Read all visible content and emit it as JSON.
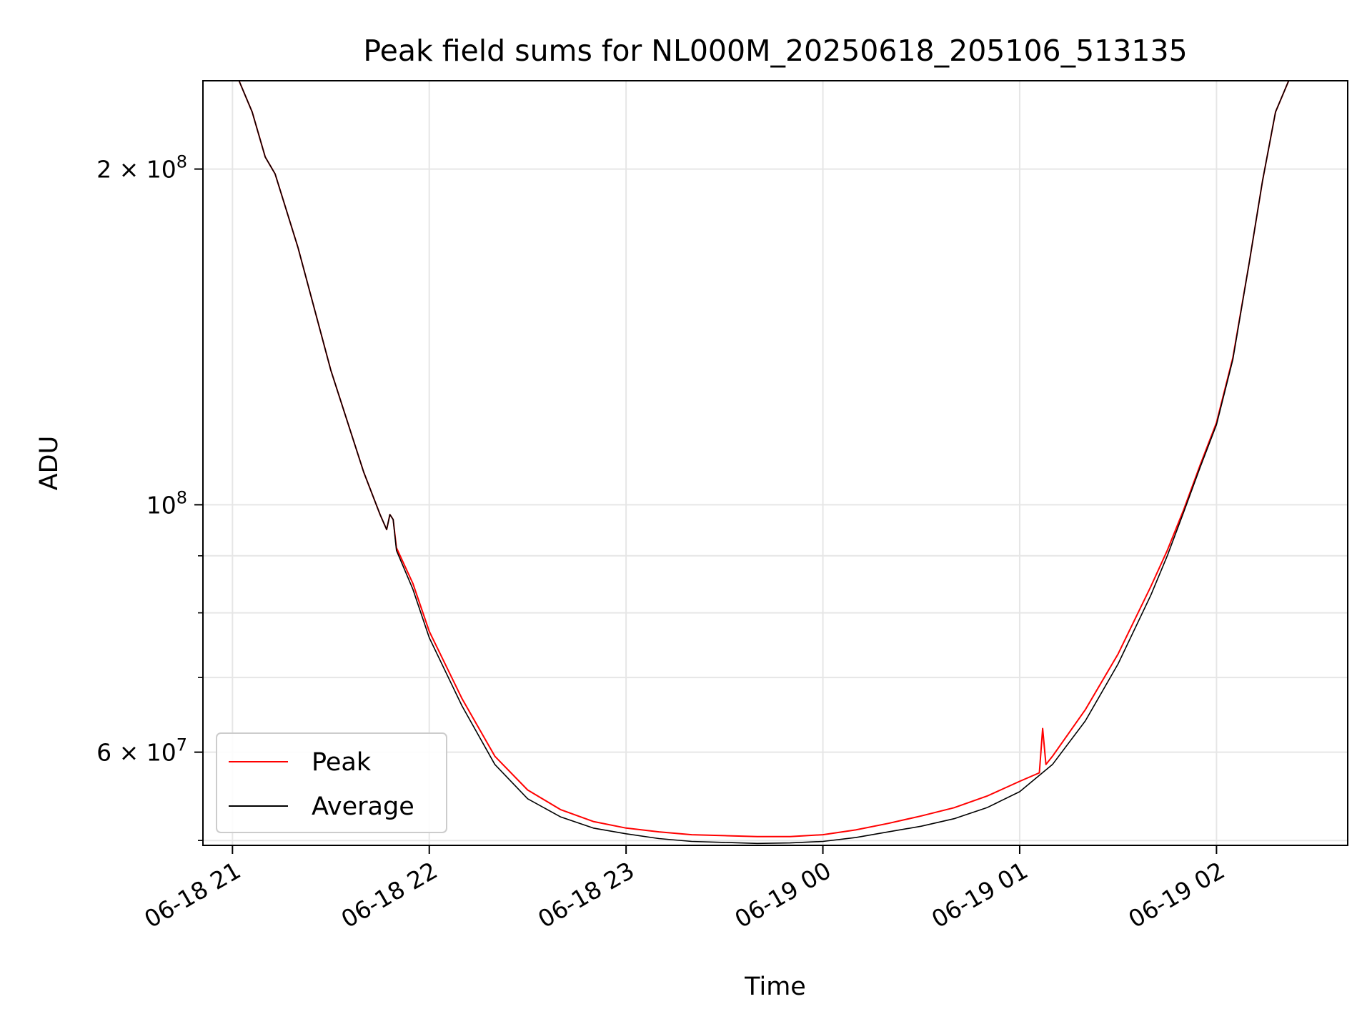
{
  "chart_data": {
    "type": "line",
    "title": "Peak field sums for NL000M_20250618_205106_513135",
    "xlabel": "Time",
    "ylabel": "ADU",
    "yscale": "log",
    "grid": true,
    "legend_position": "lower-left",
    "xlim": [
      "2025-06-18 20:51",
      "2025-06-19 02:40"
    ],
    "ylim": [
      49500000,
      240000000
    ],
    "x_ticks": [
      {
        "value": "2025-06-18 21:00",
        "label": "06-18 21"
      },
      {
        "value": "2025-06-18 22:00",
        "label": "06-18 22"
      },
      {
        "value": "2025-06-18 23:00",
        "label": "06-18 23"
      },
      {
        "value": "2025-06-19 00:00",
        "label": "06-19 00"
      },
      {
        "value": "2025-06-19 01:00",
        "label": "06-19 01"
      },
      {
        "value": "2025-06-19 02:00",
        "label": "06-19 02"
      }
    ],
    "y_ticks_major": [
      {
        "value": 200000000,
        "label": "2 × 10",
        "exp": "8"
      },
      {
        "value": 100000000,
        "label": "10",
        "exp": "8"
      },
      {
        "value": 60000000,
        "label": "6 × 10",
        "exp": "7"
      }
    ],
    "y_ticks_minor": [
      50000000,
      70000000,
      80000000,
      90000000
    ],
    "series": [
      {
        "name": "Average",
        "color": "#000000",
        "x": [
          "2025-06-18 20:51",
          "2025-06-18 21:02",
          "2025-06-18 21:06",
          "2025-06-18 21:10",
          "2025-06-18 21:13",
          "2025-06-18 21:20",
          "2025-06-18 21:30",
          "2025-06-18 21:40",
          "2025-06-18 21:45",
          "2025-06-18 21:47",
          "2025-06-18 21:48",
          "2025-06-18 21:49",
          "2025-06-18 21:50",
          "2025-06-18 21:55",
          "2025-06-18 22:00",
          "2025-06-18 22:10",
          "2025-06-18 22:20",
          "2025-06-18 22:30",
          "2025-06-18 22:40",
          "2025-06-18 22:50",
          "2025-06-18 23:00",
          "2025-06-18 23:10",
          "2025-06-18 23:20",
          "2025-06-18 23:30",
          "2025-06-18 23:40",
          "2025-06-18 23:50",
          "2025-06-19 00:00",
          "2025-06-19 00:10",
          "2025-06-19 00:20",
          "2025-06-19 00:30",
          "2025-06-19 00:40",
          "2025-06-19 00:50",
          "2025-06-19 01:00",
          "2025-06-19 01:10",
          "2025-06-19 01:20",
          "2025-06-19 01:30",
          "2025-06-19 01:40",
          "2025-06-19 01:45",
          "2025-06-19 01:50",
          "2025-06-19 01:55",
          "2025-06-19 02:00",
          "2025-06-19 02:05",
          "2025-06-19 02:10",
          "2025-06-19 02:14",
          "2025-06-19 02:18",
          "2025-06-19 02:22",
          "2025-06-19 02:40"
        ],
        "y": [
          240000000,
          240000000,
          225000000,
          205000000,
          198000000,
          170000000,
          132000000,
          107000000,
          98000000,
          95000000,
          98000000,
          97000000,
          91000000,
          84000000,
          76000000,
          66000000,
          58500000,
          54500000,
          52500000,
          51300000,
          50700000,
          50200000,
          49900000,
          49800000,
          49700000,
          49750000,
          49900000,
          50300000,
          50900000,
          51500000,
          52300000,
          53500000,
          55300000,
          58500000,
          64000000,
          72000000,
          83000000,
          90000000,
          98500000,
          108000000,
          118000000,
          135000000,
          165000000,
          195000000,
          225000000,
          240000000,
          240000000
        ]
      },
      {
        "name": "Peak",
        "color": "#ff0000",
        "x": [
          "2025-06-18 20:51",
          "2025-06-18 21:02",
          "2025-06-18 21:06",
          "2025-06-18 21:10",
          "2025-06-18 21:13",
          "2025-06-18 21:20",
          "2025-06-18 21:30",
          "2025-06-18 21:40",
          "2025-06-18 21:45",
          "2025-06-18 21:47",
          "2025-06-18 21:48",
          "2025-06-18 21:49",
          "2025-06-18 21:50",
          "2025-06-18 21:55",
          "2025-06-18 22:00",
          "2025-06-18 22:10",
          "2025-06-18 22:20",
          "2025-06-18 22:30",
          "2025-06-18 22:40",
          "2025-06-18 22:50",
          "2025-06-18 23:00",
          "2025-06-18 23:10",
          "2025-06-18 23:20",
          "2025-06-18 23:30",
          "2025-06-18 23:40",
          "2025-06-18 23:50",
          "2025-06-19 00:00",
          "2025-06-19 00:10",
          "2025-06-19 00:20",
          "2025-06-19 00:30",
          "2025-06-19 00:40",
          "2025-06-19 00:50",
          "2025-06-19 01:00",
          "2025-06-19 01:06",
          "2025-06-19 01:07",
          "2025-06-19 01:08",
          "2025-06-19 01:10",
          "2025-06-19 01:20",
          "2025-06-19 01:30",
          "2025-06-19 01:40",
          "2025-06-19 01:45",
          "2025-06-19 01:50",
          "2025-06-19 01:55",
          "2025-06-19 02:00",
          "2025-06-19 02:05",
          "2025-06-19 02:10",
          "2025-06-19 02:14",
          "2025-06-19 02:18",
          "2025-06-19 02:22",
          "2025-06-19 02:40"
        ],
        "y": [
          240000000,
          240000000,
          225000000,
          205000000,
          198000000,
          170000000,
          132000000,
          107000000,
          98000000,
          95000000,
          98000000,
          97000000,
          91500000,
          85000000,
          77000000,
          67000000,
          59500000,
          55500000,
          53300000,
          52000000,
          51300000,
          50900000,
          50600000,
          50500000,
          50400000,
          50400000,
          50600000,
          51100000,
          51800000,
          52600000,
          53500000,
          54800000,
          56500000,
          57500000,
          63000000,
          58500000,
          59500000,
          65500000,
          73500000,
          84500000,
          91000000,
          99000000,
          108500000,
          118500000,
          135500000,
          165000000,
          195000000,
          225000000,
          240000000,
          240000000
        ]
      }
    ]
  }
}
